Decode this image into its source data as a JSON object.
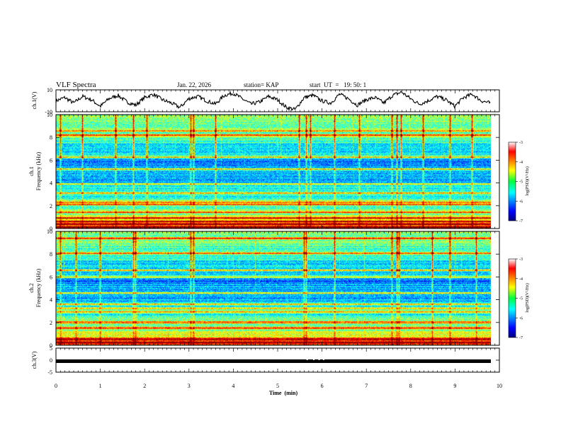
{
  "header": {
    "title": "VLF Spectra",
    "date": "Jan. 22, 2026",
    "station": "station= KAP",
    "start": "start  UT  =   19: 50: 1"
  },
  "colors": {
    "trace": "#000000",
    "spectrum_low": "#0000ff",
    "spectrum_high": "#ff0000"
  },
  "chart_data": [
    {
      "type": "line",
      "name": "ch1-waveform",
      "ylabel": "ch.1(V)",
      "ylim": [
        -10,
        10
      ],
      "y_ticks": [
        "10",
        "-10"
      ],
      "x_range": [
        0,
        9.82
      ],
      "description_values": [
        0,
        3,
        -2,
        4,
        1,
        -5,
        2,
        5,
        -1,
        -4,
        3,
        6,
        1,
        -2,
        -6,
        2,
        4,
        0,
        -3,
        5,
        7,
        2,
        -3,
        -1,
        4,
        1,
        -6,
        -8,
        3,
        5,
        0,
        -2,
        6,
        2,
        -4,
        1,
        3,
        -2,
        5,
        8,
        2,
        -3,
        0,
        4,
        1,
        -5,
        3,
        6,
        0,
        -2
      ]
    },
    {
      "type": "heatmap",
      "name": "ch1-spectrogram",
      "ylabel": "ch.1\nFrequency  (kHz)",
      "ylim": [
        0,
        10
      ],
      "y_ticks": [
        "0",
        "2",
        "4",
        "6",
        "8",
        "10"
      ],
      "colorbar": {
        "label": "log(PSD)(V²/Hz)",
        "range": [
          -7,
          -3
        ],
        "ticks": [
          "-3",
          "-4",
          "-5",
          "-6",
          "-7"
        ]
      },
      "strong_lines_khz": [
        0.1,
        0.35,
        0.6,
        0.9,
        1.4,
        2.1,
        2.3,
        3.1,
        3.9,
        5.2,
        6.3,
        8.2,
        8.6
      ],
      "impulse_times_min": [
        0.1,
        0.6,
        1.35,
        1.75,
        2.05,
        3.05,
        3.1,
        3.6,
        5.5,
        5.65,
        5.75,
        6.3,
        6.85,
        7.6,
        7.7,
        7.8,
        8.3,
        8.9,
        9.4
      ]
    },
    {
      "type": "heatmap",
      "name": "ch2-spectrogram",
      "ylabel": "ch.2\nFrequency  (kHz)",
      "ylim": [
        0,
        10
      ],
      "y_ticks": [
        "0",
        "2",
        "4",
        "6",
        "8",
        "10"
      ],
      "colorbar": {
        "label": "log(PSD)(V²/Hz)",
        "range": [
          -7,
          -3
        ],
        "ticks": [
          "-3",
          "-4",
          "-5",
          "-6",
          "-7"
        ]
      },
      "strong_lines_khz": [
        0.2,
        0.5,
        1.5,
        2.0,
        2.9,
        3.2,
        3.6,
        4.6,
        6.0,
        6.6,
        8.1,
        9.4
      ],
      "impulse_times_min": [
        0.1,
        0.45,
        1.0,
        1.75,
        1.8,
        3.05,
        3.1,
        5.6,
        5.65,
        6.3,
        7.6,
        7.7,
        7.75,
        8.5,
        8.9,
        9.5
      ]
    },
    {
      "type": "line",
      "name": "ch3-trace",
      "ylabel": "ch.3(V)",
      "ylim": [
        -5,
        5
      ],
      "y_ticks": [
        "5",
        "0",
        "-5"
      ],
      "level": 0
    }
  ],
  "x_axis": {
    "label": "Time  (min)",
    "range": [
      0,
      10
    ],
    "ticks": [
      "0",
      "1",
      "2",
      "3",
      "4",
      "5",
      "6",
      "7",
      "8",
      "9",
      "10"
    ]
  }
}
